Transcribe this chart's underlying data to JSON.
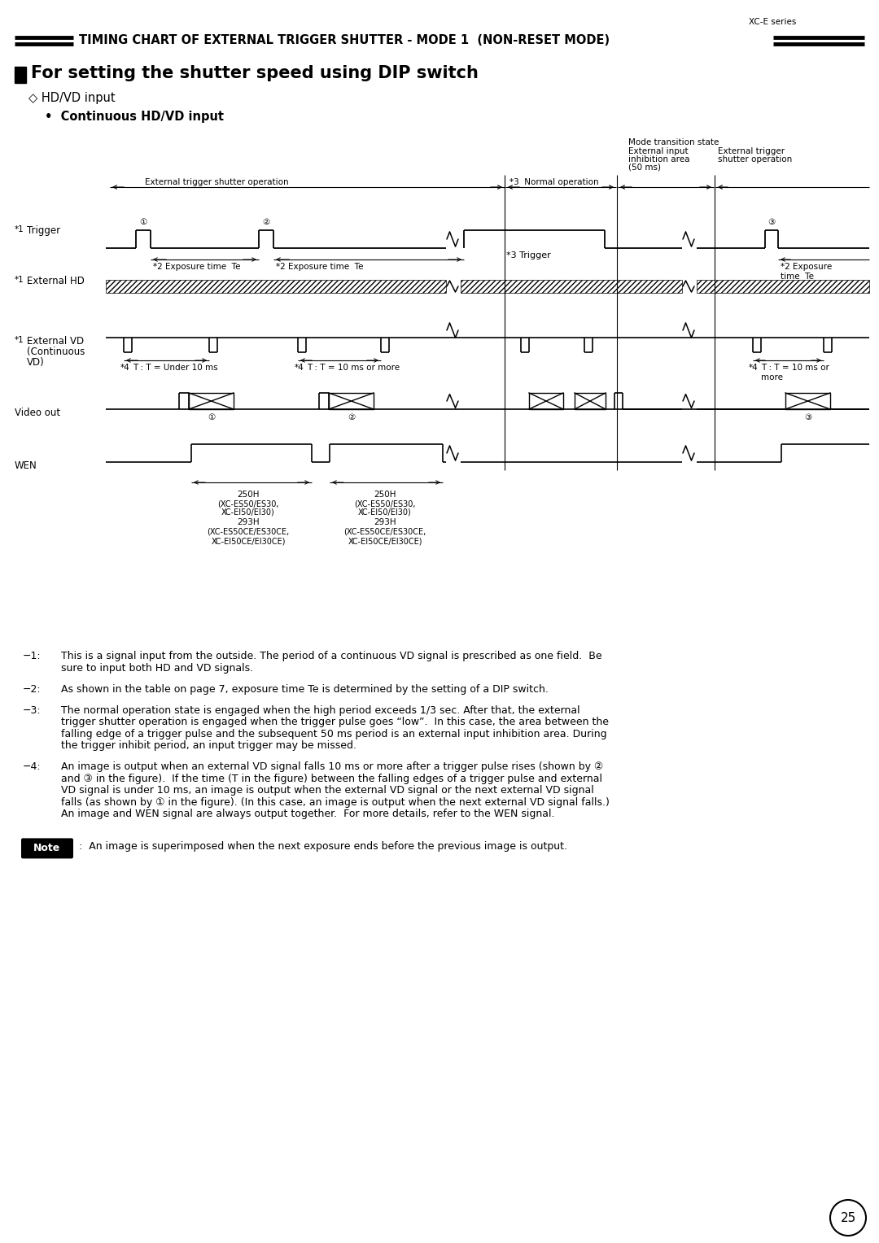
{
  "page_label": "XC-E series",
  "header_title": "TIMING CHART OF EXTERNAL TRIGGER SHUTTER - MODE 1  (NON-RESET MODE)",
  "section_title": "For setting the shutter speed using DIP switch",
  "subsection1": "HD/VD input",
  "subsection2": "Continuous HD/VD input",
  "bg_color": "#ffffff",
  "text_color": "#000000",
  "page_number": "25",
  "note_text": ":  An image is superimposed when the next exposure ends before the previous image is output.",
  "fn1": "This is a signal input from the outside. The period of a continuous VD signal is prescribed as one field.  Be\nsure to input both HD and VD signals.",
  "fn2": "As shown in the table on page 7, exposure time Te is determined by the setting of a DIP switch.",
  "fn3": "The normal operation state is engaged when the high period exceeds 1/3 sec. After that, the external\ntrigger shutter operation is engaged when the trigger pulse goes “low”.  In this case, the area between the\nfalling edge of a trigger pulse and the subsequent 50 ms period is an external input inhibition area. During\nthe trigger inhibit period, an input trigger may be missed.",
  "fn4": "An image is output when an external VD signal falls 10 ms or more after a trigger pulse rises (shown by ②\nand ③ in the figure).  If the time (T in the figure) between the falling edges of a trigger pulse and external\nVD signal is under 10 ms, an image is output when the external VD signal or the next external VD signal\nfalls (as shown by ① in the figure). (In this case, an image is output when the next external VD signal falls.)\nAn image and WEN signal are always output together.  For more details, refer to the WEN signal.",
  "wen_label1_line1": "250H",
  "wen_label1_line2": "(XC-ES50/ES30,",
  "wen_label1_line3": "XC-EI50/EI30)",
  "wen_label1_line4": "293H",
  "wen_label1_line5": "(XC-ES50CE/ES30CE,",
  "wen_label1_line6": "XC-EI50CE/EI30CE)"
}
